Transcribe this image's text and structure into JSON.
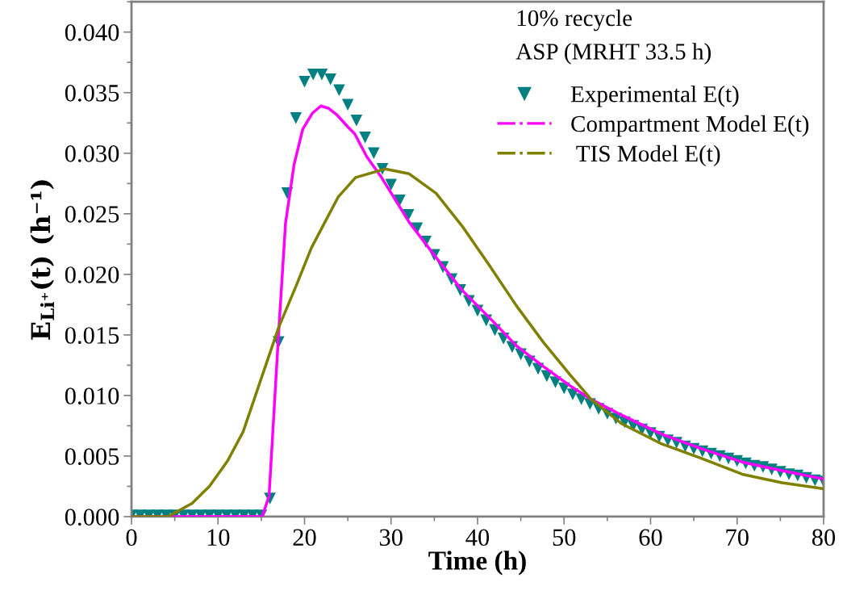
{
  "chart_data": {
    "type": "line",
    "xlabel": "Time (h)",
    "ylabel": "E$_{Li⁺}$(t) (h⁻¹)",
    "annotations": [
      "10% recycle",
      "ASP (MRHT 33.5 h)"
    ],
    "xlim": [
      0,
      80
    ],
    "xticks": [
      0,
      10,
      20,
      30,
      40,
      50,
      60,
      70,
      80
    ],
    "ylim": [
      0,
      0.0425
    ],
    "yticks": [
      {
        "value": 0,
        "label": "0.000"
      },
      {
        "value": 0.005,
        "label": "0.005"
      },
      {
        "value": 0.01,
        "label": "0.010"
      },
      {
        "value": 0.015,
        "label": "0.015"
      },
      {
        "value": 0.02,
        "label": "0.020"
      },
      {
        "value": 0.025,
        "label": "0.025"
      },
      {
        "value": 0.03,
        "label": "0.030"
      },
      {
        "value": 0.035,
        "label": "0.035"
      },
      {
        "value": 0.04,
        "label": "0.040"
      }
    ],
    "grid": false,
    "legend": "top right",
    "series": [
      {
        "name": "Experimental E(t)",
        "type": "scatter",
        "marker": "triangle",
        "color": "#008080",
        "x": [
          0,
          1,
          2,
          3,
          4,
          5,
          6,
          7,
          8,
          9,
          10,
          11,
          12,
          13,
          14,
          15,
          16,
          17,
          18,
          19,
          20,
          21,
          22,
          23,
          24,
          25,
          26,
          27,
          28,
          29,
          30,
          31,
          32,
          33,
          34,
          35,
          36,
          37,
          38,
          39,
          40,
          41,
          42,
          43,
          44,
          45,
          46,
          47,
          48,
          49,
          50,
          51,
          52,
          53,
          54,
          55,
          56,
          57,
          58,
          59,
          60,
          61,
          62,
          63,
          64,
          65,
          66,
          67,
          68,
          69,
          70,
          71,
          72,
          73,
          74,
          75,
          76,
          77,
          78,
          79,
          80
        ],
        "values": [
          0.0001,
          0.0001,
          0.0001,
          0.0001,
          0.0001,
          0.0001,
          0.0001,
          0.0001,
          0.0001,
          0.0001,
          0.0001,
          0.0001,
          0.0001,
          0.0001,
          0.0001,
          0.0001,
          0.0015,
          0.0144,
          0.0267,
          0.0329,
          0.0359,
          0.0365,
          0.0365,
          0.0361,
          0.0352,
          0.034,
          0.0327,
          0.0313,
          0.03,
          0.0287,
          0.0274,
          0.0261,
          0.0249,
          0.0238,
          0.0227,
          0.0216,
          0.0206,
          0.0196,
          0.0187,
          0.0178,
          0.017,
          0.0162,
          0.0154,
          0.0147,
          0.014,
          0.0134,
          0.0128,
          0.0122,
          0.0116,
          0.0111,
          0.0106,
          0.0101,
          0.0097,
          0.0093,
          0.0089,
          0.0085,
          0.0081,
          0.0078,
          0.0075,
          0.0072,
          0.0069,
          0.0066,
          0.0063,
          0.0061,
          0.0058,
          0.0056,
          0.0054,
          0.0052,
          0.005,
          0.0048,
          0.0046,
          0.0044,
          0.0042,
          0.0041,
          0.0039,
          0.0037,
          0.0035,
          0.0034,
          0.0032,
          0.003,
          0.0029
        ]
      },
      {
        "name": "Compartment Model E(t)",
        "color": "#ff00ff",
        "line_style": "solid",
        "x": [
          0,
          15.1,
          15.9,
          17.0,
          17.8,
          18.8,
          19.8,
          20.9,
          21.9,
          22.8,
          23.7,
          25.1,
          25.8,
          27.2,
          28.9,
          32.1,
          35.2,
          38.2,
          41.4,
          44.5,
          47.6,
          50.7,
          53.1,
          56.6,
          61.3,
          65.9,
          70.6,
          75.2,
          80
        ],
        "values": [
          0,
          0,
          0.0017,
          0.0151,
          0.0242,
          0.0291,
          0.032,
          0.0333,
          0.0339,
          0.0337,
          0.0332,
          0.0321,
          0.0316,
          0.0297,
          0.028,
          0.0243,
          0.0214,
          0.0187,
          0.0164,
          0.0141,
          0.0124,
          0.0108,
          0.0097,
          0.0084,
          0.0068,
          0.0056,
          0.0045,
          0.0038,
          0.0031
        ]
      },
      {
        "name": " TIS Model E(t)",
        "color": "#808000",
        "line_style": "solid",
        "x": [
          0,
          4.2,
          7.0,
          9.0,
          11.1,
          12.9,
          14.9,
          17.0,
          19.0,
          20.8,
          23.9,
          25.9,
          29.3,
          32.1,
          35.2,
          38.2,
          41.4,
          44.5,
          47.6,
          50.7,
          53.1,
          56.6,
          61.3,
          65.9,
          70.6,
          75.2,
          80
        ],
        "values": [
          0,
          0,
          0.0011,
          0.0025,
          0.0046,
          0.007,
          0.0112,
          0.0156,
          0.019,
          0.0222,
          0.0264,
          0.028,
          0.0287,
          0.0283,
          0.0267,
          0.024,
          0.0207,
          0.0174,
          0.0144,
          0.0117,
          0.0097,
          0.0077,
          0.006,
          0.0048,
          0.0035,
          0.0028,
          0.0023
        ]
      }
    ]
  }
}
